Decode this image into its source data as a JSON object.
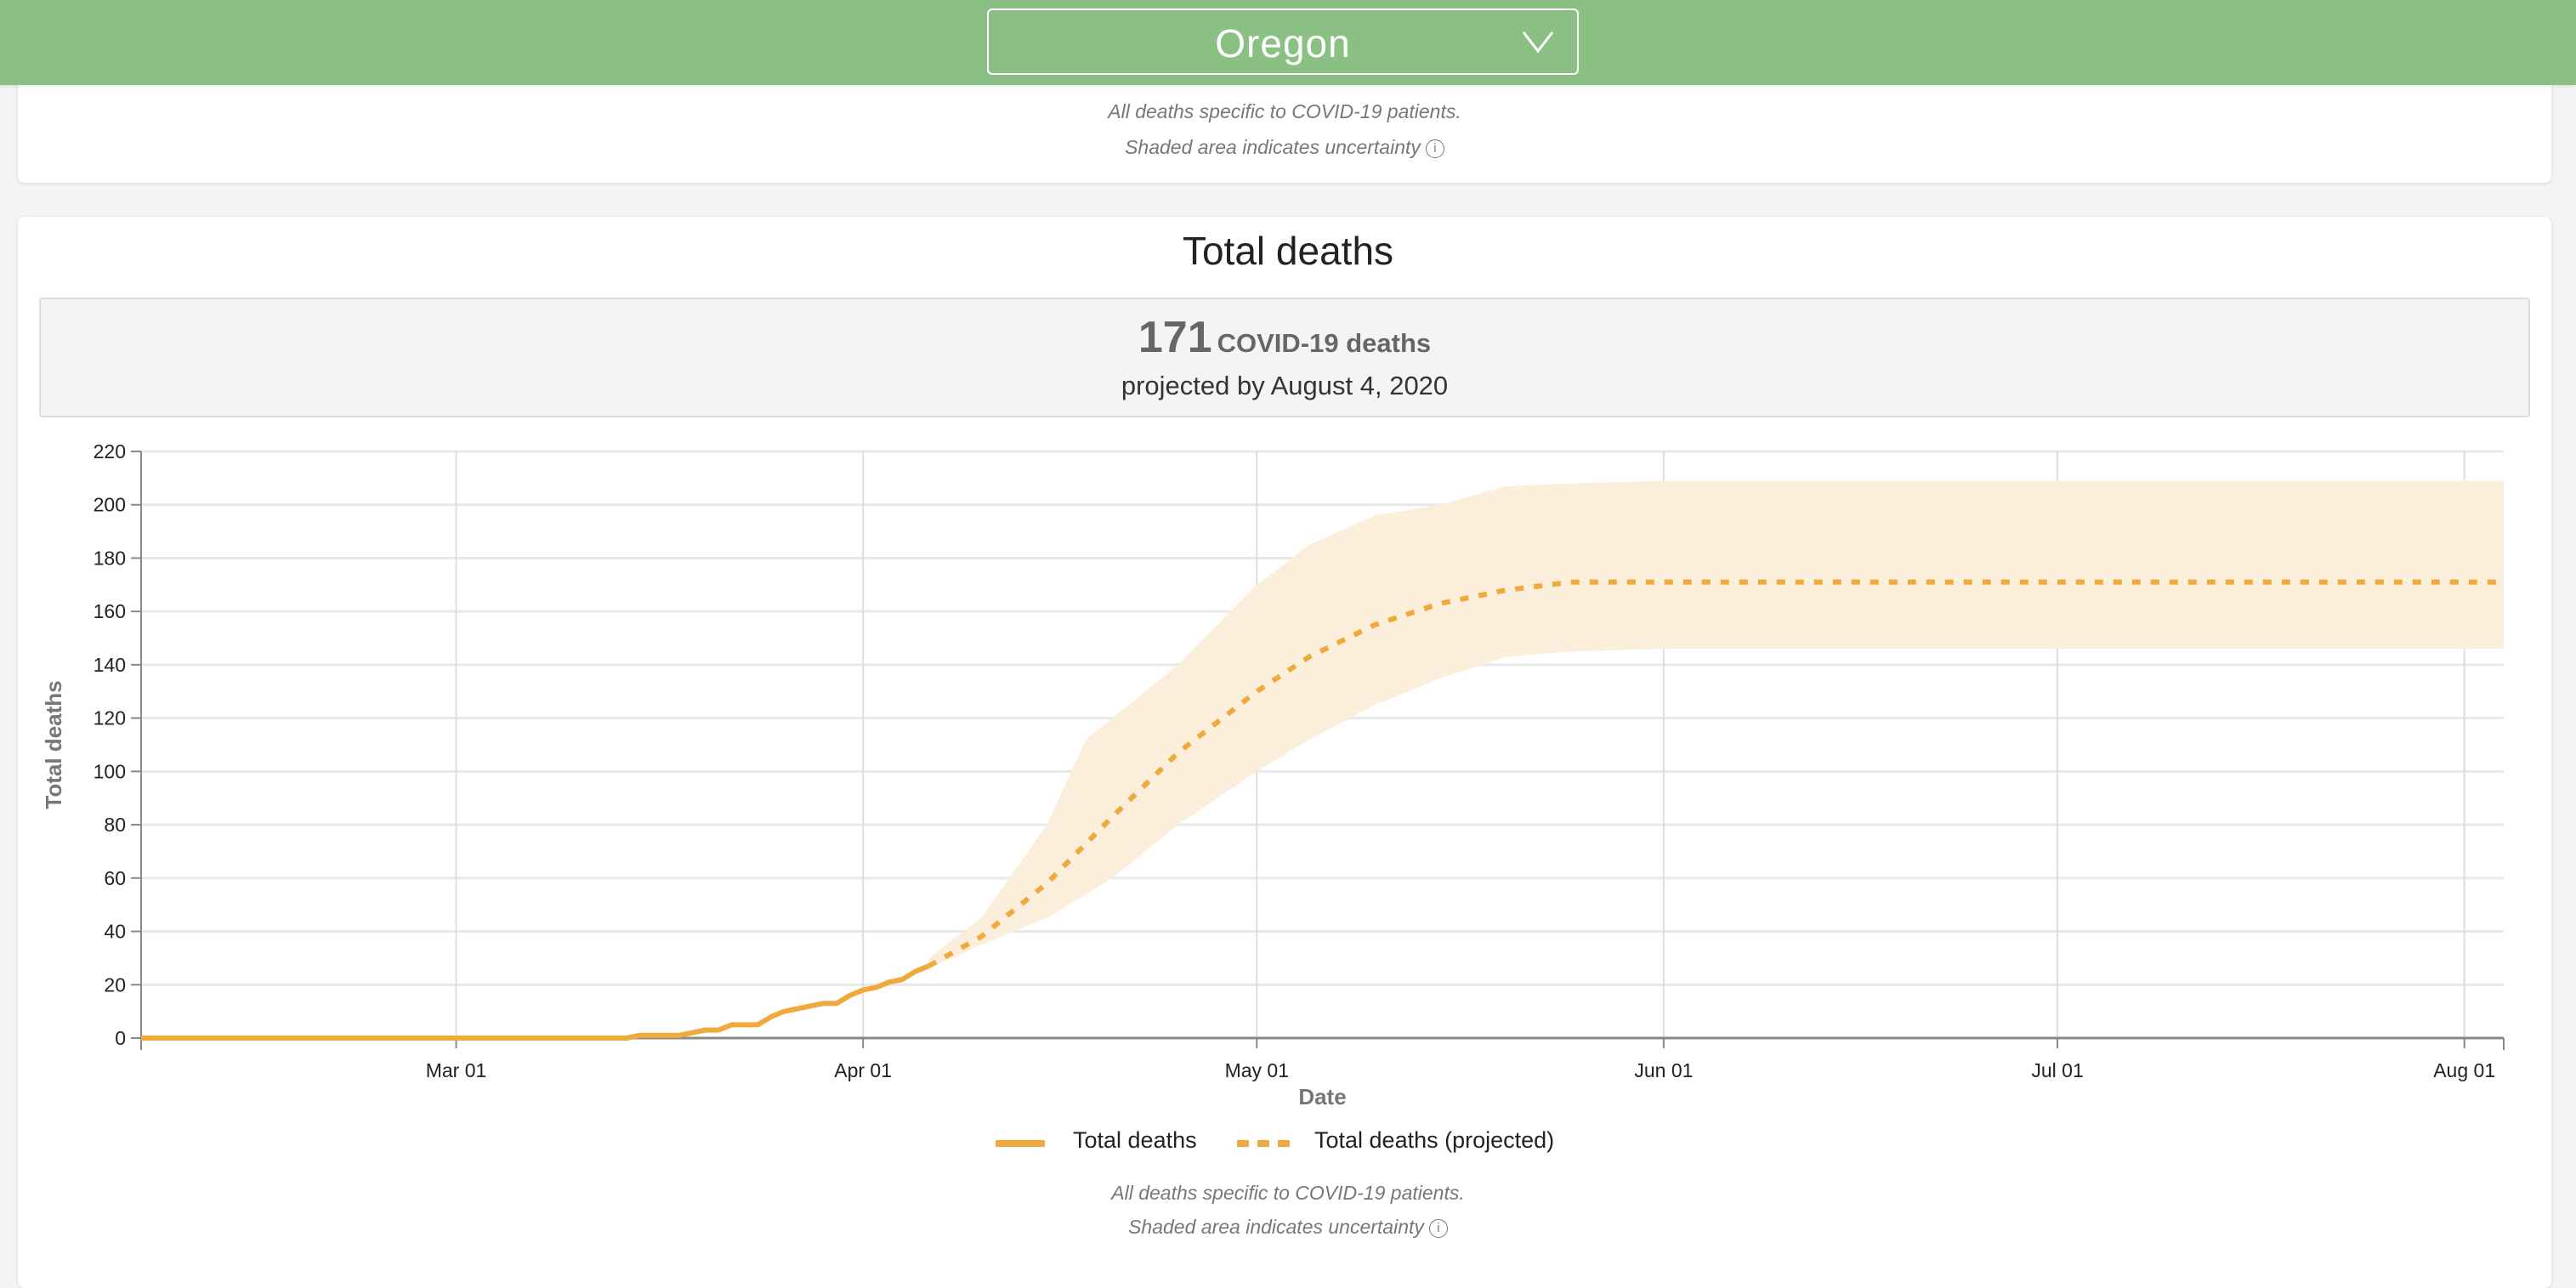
{
  "header": {
    "state_select": "Oregon",
    "chevron_icon": "chevron-down-icon"
  },
  "top_card": {
    "note1": "All deaths specific to COVID-19 patients.",
    "note2": "Shaded area indicates uncertainty",
    "info_icon": "info-circle-icon"
  },
  "total_deaths_card": {
    "title": "Total deaths",
    "summary": {
      "number": "171",
      "unit": "COVID-19 deaths",
      "subtitle": "projected by August 4, 2020"
    },
    "note1": "All deaths specific to COVID-19 patients.",
    "note2": "Shaded area indicates uncertainty",
    "info_icon": "info-circle-icon"
  },
  "colors": {
    "header": "#8bc084",
    "series": "#f0a93b",
    "band": "#fbeedb"
  },
  "chart_data": {
    "type": "line",
    "xlabel": "Date",
    "ylabel": "Total deaths",
    "xlim": [
      "2020-02-06",
      "2020-08-04"
    ],
    "ylim": [
      0,
      220
    ],
    "yticks": [
      0,
      20,
      40,
      60,
      80,
      100,
      120,
      140,
      160,
      180,
      200,
      220
    ],
    "xticks": [
      {
        "date": "2020-03-01",
        "label": "Mar 01"
      },
      {
        "date": "2020-04-01",
        "label": "Apr 01"
      },
      {
        "date": "2020-05-01",
        "label": "May 01"
      },
      {
        "date": "2020-06-01",
        "label": "Jun 01"
      },
      {
        "date": "2020-07-01",
        "label": "Jul 01"
      },
      {
        "date": "2020-08-01",
        "label": "Aug 01"
      }
    ],
    "grid": true,
    "legend_placement": "bottom",
    "series": [
      {
        "name": "Total deaths",
        "style": "solid",
        "points": [
          [
            "2020-02-06",
            0
          ],
          [
            "2020-03-14",
            0
          ],
          [
            "2020-03-15",
            1
          ],
          [
            "2020-03-18",
            1
          ],
          [
            "2020-03-19",
            2
          ],
          [
            "2020-03-20",
            3
          ],
          [
            "2020-03-21",
            3
          ],
          [
            "2020-03-22",
            5
          ],
          [
            "2020-03-24",
            5
          ],
          [
            "2020-03-25",
            8
          ],
          [
            "2020-03-26",
            10
          ],
          [
            "2020-03-27",
            11
          ],
          [
            "2020-03-28",
            12
          ],
          [
            "2020-03-29",
            13
          ],
          [
            "2020-03-30",
            13
          ],
          [
            "2020-03-31",
            16
          ],
          [
            "2020-04-01",
            18
          ],
          [
            "2020-04-02",
            19
          ],
          [
            "2020-04-03",
            21
          ],
          [
            "2020-04-04",
            22
          ],
          [
            "2020-04-05",
            25
          ],
          [
            "2020-04-06",
            27
          ]
        ]
      },
      {
        "name": "Total deaths (projected)",
        "style": "dashed",
        "points": [
          [
            "2020-04-06",
            27
          ],
          [
            "2020-04-10",
            38
          ],
          [
            "2020-04-15",
            58
          ],
          [
            "2020-04-20",
            83
          ],
          [
            "2020-04-25",
            107
          ],
          [
            "2020-05-01",
            130
          ],
          [
            "2020-05-05",
            143
          ],
          [
            "2020-05-10",
            155
          ],
          [
            "2020-05-15",
            163
          ],
          [
            "2020-05-20",
            168
          ],
          [
            "2020-05-25",
            171
          ],
          [
            "2020-06-01",
            171
          ],
          [
            "2020-08-04",
            171
          ]
        ]
      }
    ],
    "uncertainty_band": {
      "upper": [
        [
          "2020-04-06",
          30
        ],
        [
          "2020-04-10",
          45
        ],
        [
          "2020-04-15",
          80
        ],
        [
          "2020-04-18",
          112
        ],
        [
          "2020-04-25",
          140
        ],
        [
          "2020-05-01",
          170
        ],
        [
          "2020-05-05",
          185
        ],
        [
          "2020-05-10",
          196
        ],
        [
          "2020-05-15",
          200
        ],
        [
          "2020-05-20",
          207
        ],
        [
          "2020-05-25",
          208
        ],
        [
          "2020-06-01",
          209
        ],
        [
          "2020-08-04",
          209
        ]
      ],
      "lower": [
        [
          "2020-04-06",
          26
        ],
        [
          "2020-04-10",
          35
        ],
        [
          "2020-04-15",
          45
        ],
        [
          "2020-04-20",
          60
        ],
        [
          "2020-04-25",
          80
        ],
        [
          "2020-05-01",
          100
        ],
        [
          "2020-05-05",
          112
        ],
        [
          "2020-05-10",
          125
        ],
        [
          "2020-05-15",
          135
        ],
        [
          "2020-05-20",
          143
        ],
        [
          "2020-05-25",
          145
        ],
        [
          "2020-06-01",
          146
        ],
        [
          "2020-08-04",
          146
        ]
      ]
    }
  }
}
